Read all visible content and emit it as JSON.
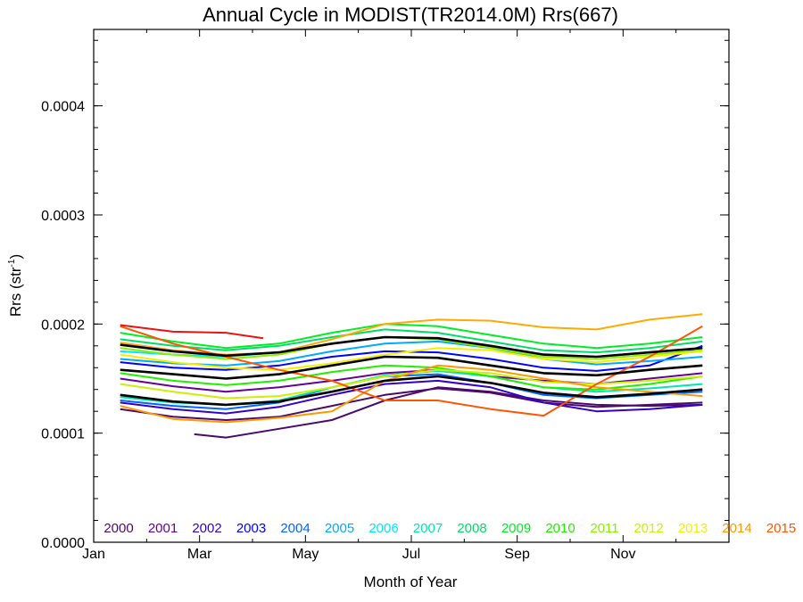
{
  "chart_data": {
    "type": "line",
    "title": "Annual Cycle in MODIST(TR2014.0M) Rrs(667)",
    "xlabel": "Month of Year",
    "ylabel": "Rrs (str",
    "ylabel_sup": "-1",
    "ylabel_close": ")",
    "xlim": [
      1,
      13
    ],
    "ylim": [
      0.0,
      0.00047
    ],
    "x_ticks": [
      {
        "value": 1,
        "label": "Jan"
      },
      {
        "value": 3,
        "label": "Mar"
      },
      {
        "value": 5,
        "label": "May"
      },
      {
        "value": 7,
        "label": "Jul"
      },
      {
        "value": 9,
        "label": "Sep"
      },
      {
        "value": 11,
        "label": "Nov"
      }
    ],
    "y_ticks": [
      {
        "value": 0.0,
        "label": "0.0000"
      },
      {
        "value": 0.0001,
        "label": "0.0001"
      },
      {
        "value": 0.0002,
        "label": "0.0002"
      },
      {
        "value": 0.0003,
        "label": "0.0003"
      },
      {
        "value": 0.0004,
        "label": "0.0004"
      }
    ],
    "grid": false,
    "legend_position": "bottom",
    "series": [
      {
        "name": "2000",
        "color": "#4a0a6e",
        "x": [
          1.5,
          2.5,
          3.5,
          4.5,
          5.5,
          6.5,
          7.5,
          8.5,
          9.5,
          10.5,
          11.5,
          12.5
        ],
        "y": [
          0.000122,
          0.000115,
          0.000112,
          0.000115,
          0.000125,
          0.000135,
          0.000141,
          0.000137,
          0.000128,
          0.000124,
          0.000126,
          0.000128
        ]
      },
      {
        "name": "2000",
        "color": "#4a0a6e",
        "x": [
          2.9,
          3.5,
          4.5,
          5.5,
          6.5,
          7.5,
          8.5,
          9.5,
          10.5,
          11.5,
          12.5
        ],
        "y": [
          9.9e-05,
          9.6e-05,
          0.000104,
          0.000112,
          0.00013,
          0.000142,
          0.000138,
          0.00013,
          0.000126,
          0.000125,
          0.000126
        ]
      },
      {
        "name": "2001",
        "color": "#660099",
        "x": [
          1.5,
          2.5,
          3.5,
          4.5,
          5.5,
          6.5,
          7.5,
          8.5,
          9.5,
          10.5,
          11.5,
          12.5
        ],
        "y": [
          0.00015,
          0.000143,
          0.000138,
          0.000142,
          0.000148,
          0.000155,
          0.000158,
          0.000152,
          0.000148,
          0.000145,
          0.00015,
          0.000155
        ]
      },
      {
        "name": "2002",
        "color": "#3300cc",
        "x": [
          1.5,
          2.5,
          3.5,
          4.5,
          5.5,
          6.5,
          7.5,
          8.5,
          9.5,
          10.5,
          11.5,
          12.5
        ],
        "y": [
          0.000128,
          0.000122,
          0.000118,
          0.000124,
          0.000135,
          0.000145,
          0.000148,
          0.000142,
          0.000128,
          0.00012,
          0.000122,
          0.000126
        ]
      },
      {
        "name": "2003",
        "color": "#0000ff",
        "x": [
          1.5,
          2.5,
          3.5,
          4.5,
          5.5,
          6.5,
          7.5,
          8.5,
          9.5,
          10.5,
          11.5,
          12.5
        ],
        "y": [
          0.000165,
          0.00016,
          0.000158,
          0.000162,
          0.00017,
          0.000175,
          0.000174,
          0.000168,
          0.00016,
          0.000157,
          0.000162,
          0.00018
        ]
      },
      {
        "name": "2004",
        "color": "#0066ff",
        "x": [
          1.5,
          2.5,
          3.5,
          4.5,
          5.5,
          6.5,
          7.5,
          8.5,
          9.5,
          10.5,
          11.5,
          12.5
        ],
        "y": [
          0.00013,
          0.000125,
          0.000122,
          0.000128,
          0.000142,
          0.000152,
          0.000154,
          0.000146,
          0.000135,
          0.000132,
          0.000135,
          0.000138
        ]
      },
      {
        "name": "2005",
        "color": "#00aaff",
        "x": [
          1.5,
          2.5,
          3.5,
          4.5,
          5.5,
          6.5,
          7.5,
          8.5,
          9.5,
          10.5,
          11.5,
          12.5
        ],
        "y": [
          0.000168,
          0.000164,
          0.000162,
          0.000166,
          0.000175,
          0.000182,
          0.000184,
          0.000178,
          0.000168,
          0.000163,
          0.000166,
          0.00017
        ]
      },
      {
        "name": "2006",
        "color": "#00e5ff",
        "x": [
          1.5,
          2.5,
          3.5,
          4.5,
          5.5,
          6.5,
          7.5,
          8.5,
          9.5,
          10.5,
          11.5,
          12.5
        ],
        "y": [
          0.000175,
          0.000172,
          0.00017,
          0.000174,
          0.000182,
          0.000188,
          0.000187,
          0.00018,
          0.000172,
          0.00017,
          0.000174,
          0.000178
        ]
      },
      {
        "name": "2007",
        "color": "#00e6b0",
        "x": [
          1.5,
          2.5,
          3.5,
          4.5,
          5.5,
          6.5,
          7.5,
          8.5,
          9.5,
          10.5,
          11.5,
          12.5
        ],
        "y": [
          0.000133,
          0.000128,
          0.000126,
          0.00013,
          0.000142,
          0.000153,
          0.000157,
          0.000152,
          0.000142,
          0.000138,
          0.000141,
          0.000145
        ]
      },
      {
        "name": "2008",
        "color": "#00dd66",
        "x": [
          1.5,
          2.5,
          3.5,
          4.5,
          5.5,
          6.5,
          7.5,
          8.5,
          9.5,
          10.5,
          11.5,
          12.5
        ],
        "y": [
          0.000186,
          0.00018,
          0.000176,
          0.00018,
          0.000188,
          0.000195,
          0.000192,
          0.000184,
          0.000176,
          0.000174,
          0.000178,
          0.000184
        ]
      },
      {
        "name": "2009",
        "color": "#00ee22",
        "x": [
          1.5,
          2.5,
          3.5,
          4.5,
          5.5,
          6.5,
          7.5,
          8.5,
          9.5,
          10.5,
          11.5,
          12.5
        ],
        "y": [
          0.000192,
          0.000184,
          0.000178,
          0.000182,
          0.000192,
          0.0002,
          0.000198,
          0.00019,
          0.000182,
          0.000178,
          0.000182,
          0.000188
        ]
      },
      {
        "name": "2010",
        "color": "#22ee00",
        "x": [
          1.5,
          2.5,
          3.5,
          4.5,
          5.5,
          6.5,
          7.5,
          8.5,
          9.5,
          10.5,
          11.5,
          12.5
        ],
        "y": [
          0.000155,
          0.000148,
          0.000144,
          0.000148,
          0.000156,
          0.000162,
          0.00016,
          0.000152,
          0.000142,
          0.00014,
          0.000145,
          0.000152
        ]
      },
      {
        "name": "2011",
        "color": "#88f000",
        "x": [
          1.5,
          2.5,
          3.5,
          4.5,
          5.5,
          6.5,
          7.5,
          8.5,
          9.5,
          10.5,
          11.5,
          12.5
        ],
        "y": [
          0.000178,
          0.000172,
          0.000168,
          0.000172,
          0.000182,
          0.000188,
          0.000186,
          0.000178,
          0.00017,
          0.000168,
          0.000172,
          0.000176
        ]
      },
      {
        "name": "2012",
        "color": "#ccf000",
        "x": [
          1.5,
          2.5,
          3.5,
          4.5,
          5.5,
          6.5,
          7.5,
          8.5,
          9.5,
          10.5,
          11.5,
          12.5
        ],
        "y": [
          0.000145,
          0.000138,
          0.000132,
          0.000134,
          0.000142,
          0.000152,
          0.000158,
          0.000155,
          0.000147,
          0.000145,
          0.000148,
          0.000152
        ]
      },
      {
        "name": "2013",
        "color": "#f5ee00",
        "x": [
          1.5,
          2.5,
          3.5,
          4.5,
          5.5,
          6.5,
          7.5,
          8.5,
          9.5,
          10.5,
          11.5,
          12.5
        ],
        "y": [
          0.000172,
          0.000165,
          0.00016,
          0.000158,
          0.000164,
          0.000172,
          0.000178,
          0.000176,
          0.000168,
          0.000165,
          0.00017,
          0.000175
        ]
      },
      {
        "name": "2014",
        "color": "#ffaa00",
        "x": [
          1.5,
          2.5,
          3.5,
          4.5,
          5.5,
          6.5,
          7.5,
          8.5,
          9.5,
          10.5,
          11.5,
          12.5
        ],
        "y": [
          0.000183,
          0.000176,
          0.000172,
          0.000174,
          0.000186,
          0.0002,
          0.000204,
          0.000203,
          0.000197,
          0.000195,
          0.000204,
          0.000209
        ]
      },
      {
        "name": "2014",
        "color": "#ff9900",
        "x": [
          1.5,
          2.5,
          3.5,
          4.5,
          5.5,
          6.5,
          7.5,
          8.5,
          9.5,
          10.5,
          11.5,
          12.5
        ],
        "y": [
          0.000125,
          0.000113,
          0.00011,
          0.000114,
          0.00012,
          0.000148,
          0.000162,
          0.000158,
          0.00015,
          0.000142,
          0.000138,
          0.000134
        ]
      },
      {
        "name": "2015",
        "color": "#ff5500",
        "x": [
          1.5,
          2.5,
          3.5,
          4.5,
          5.5,
          6.5,
          7.5,
          8.5,
          9.5,
          10.5,
          11.5,
          12.5
        ],
        "y": [
          0.000198,
          0.000182,
          0.00017,
          0.000158,
          0.000148,
          0.00013,
          0.00013,
          0.000122,
          0.000116,
          0.000145,
          0.00017,
          0.000198
        ]
      },
      {
        "name": "",
        "color": "#ee1111",
        "x": [
          1.5,
          2.5,
          3.5,
          4.2
        ],
        "y": [
          0.000199,
          0.000193,
          0.000192,
          0.000187
        ]
      },
      {
        "name": "",
        "color": "#000000",
        "x": [
          1.5,
          2.5,
          3.5,
          4.5,
          5.5,
          6.5,
          7.5,
          8.5,
          9.5,
          10.5,
          11.5,
          12.5
        ],
        "y": [
          0.000181,
          0.000175,
          0.000171,
          0.000174,
          0.000182,
          0.000188,
          0.000187,
          0.00018,
          0.000172,
          0.00017,
          0.000174,
          0.000178
        ]
      },
      {
        "name": "",
        "color": "#000000",
        "x": [
          1.5,
          2.5,
          3.5,
          4.5,
          5.5,
          6.5,
          7.5,
          8.5,
          9.5,
          10.5,
          11.5,
          12.5
        ],
        "y": [
          0.000158,
          0.000154,
          0.00015,
          0.000154,
          0.000162,
          0.00017,
          0.000169,
          0.000162,
          0.000155,
          0.000153,
          0.000158,
          0.000162
        ]
      },
      {
        "name": "",
        "color": "#000000",
        "x": [
          1.5,
          2.5,
          3.5,
          4.5,
          5.5,
          6.5,
          7.5,
          8.5,
          9.5,
          10.5,
          11.5,
          12.5
        ],
        "y": [
          0.000135,
          0.000129,
          0.000126,
          0.000129,
          0.000138,
          0.000148,
          0.000152,
          0.000146,
          0.000137,
          0.000133,
          0.000136,
          0.00014
        ]
      }
    ],
    "legend": [
      {
        "label": "2000",
        "color": "#4a0a6e"
      },
      {
        "label": "2001",
        "color": "#660099"
      },
      {
        "label": "2002",
        "color": "#3300cc"
      },
      {
        "label": "2003",
        "color": "#0000ff"
      },
      {
        "label": "2004",
        "color": "#0066ff"
      },
      {
        "label": "2005",
        "color": "#00aaff"
      },
      {
        "label": "2006",
        "color": "#00e5ff"
      },
      {
        "label": "2007",
        "color": "#00e6b0"
      },
      {
        "label": "2008",
        "color": "#00dd66"
      },
      {
        "label": "2009",
        "color": "#00ee22"
      },
      {
        "label": "2010",
        "color": "#22ee00"
      },
      {
        "label": "2011",
        "color": "#88f000"
      },
      {
        "label": "2012",
        "color": "#ccf000"
      },
      {
        "label": "2013",
        "color": "#f5ee00"
      },
      {
        "label": "2014",
        "color": "#ff9900"
      },
      {
        "label": "2015",
        "color": "#ff5500"
      }
    ]
  }
}
